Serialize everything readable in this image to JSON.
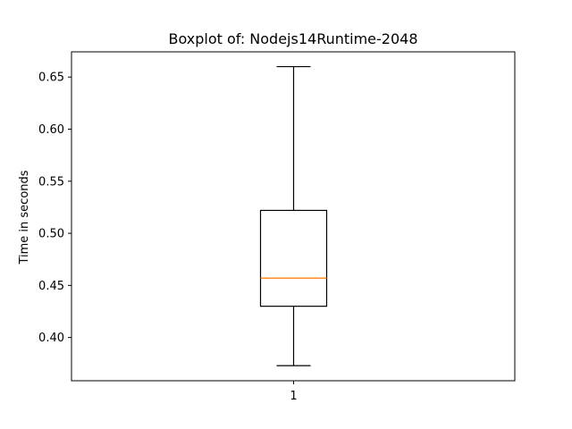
{
  "chart_data": {
    "type": "boxplot",
    "title": "Boxplot of: Nodejs14Runtime-2048",
    "xlabel": "",
    "ylabel": "Time in seconds",
    "categories": [
      "1"
    ],
    "ylim": [
      0.3585,
      0.6742
    ],
    "yticks": [
      0.4,
      0.45,
      0.5,
      0.55,
      0.6,
      0.65
    ],
    "ytick_labels": [
      "0.40",
      "0.45",
      "0.50",
      "0.55",
      "0.60",
      "0.65"
    ],
    "boxes": [
      {
        "category": "1",
        "whisker_low": 0.373,
        "q1": 0.43,
        "median": 0.457,
        "q3": 0.522,
        "whisker_high": 0.66
      }
    ],
    "grid": false,
    "colors": {
      "box": "#000000",
      "median": "#ff7f0e"
    }
  }
}
